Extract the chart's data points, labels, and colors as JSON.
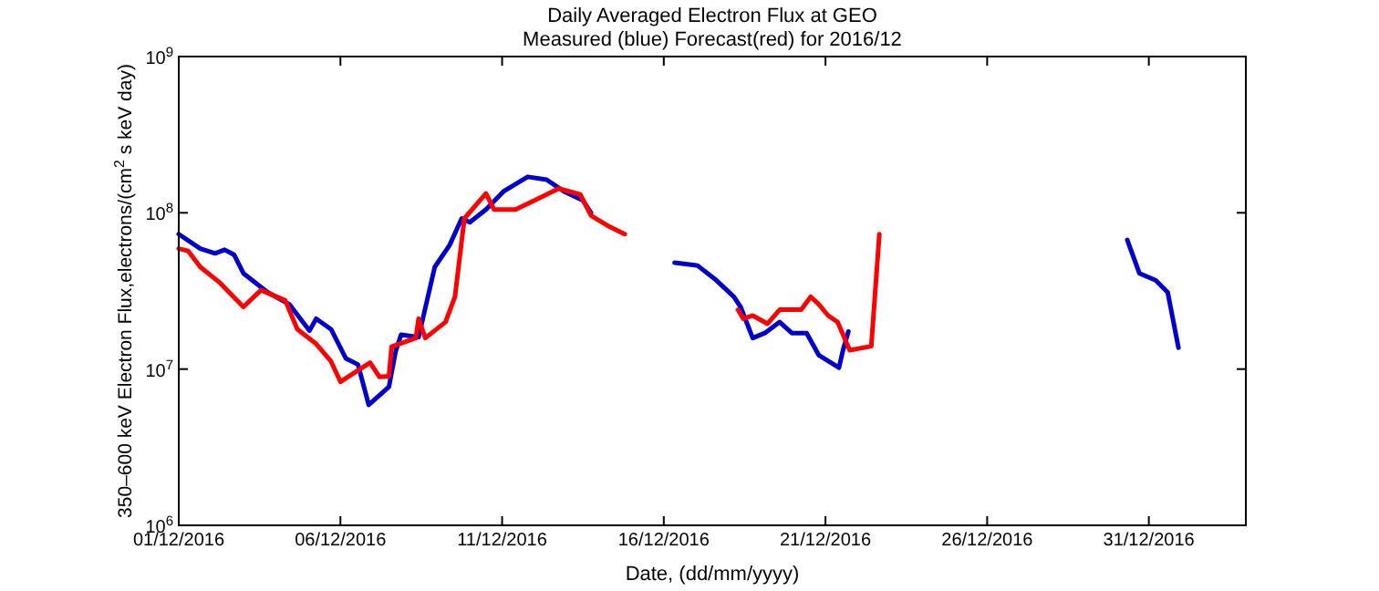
{
  "chart_data": {
    "type": "line",
    "title": "Daily Averaged Electron Flux at GEO",
    "subtitle": "Measured (blue) Forecast(red) for 2016/12",
    "xlabel": "Date, (dd/mm/yyyy)",
    "ylabel": "350–600 keV Electron Flux,electrons/(cm$^{2}$ s keV day)",
    "log": "y",
    "grid": false,
    "xlim": [
      "2016-12-01",
      "2017-01-03"
    ],
    "xticks": [
      {
        "value": "2016-12-01",
        "label": "01/12/2016"
      },
      {
        "value": "2016-12-06",
        "label": "06/12/2016"
      },
      {
        "value": "2016-12-11",
        "label": "11/12/2016"
      },
      {
        "value": "2016-12-16",
        "label": "16/12/2016"
      },
      {
        "value": "2016-12-21",
        "label": "21/12/2016"
      },
      {
        "value": "2016-12-26",
        "label": "26/12/2016"
      },
      {
        "value": "2016-12-31",
        "label": "31/12/2016"
      }
    ],
    "ylim": [
      1000000,
      1000000000
    ],
    "yticks": [
      {
        "value": 1000000,
        "label": "10$^{6}$"
      },
      {
        "value": 10000000,
        "label": "10$^{7}$"
      },
      {
        "value": 100000000,
        "label": "10$^{8}$"
      },
      {
        "value": 1000000000,
        "label": "10$^{9}$"
      }
    ],
    "series": [
      {
        "color": "#0000cc",
        "x": [
          "2016-12-01T00:00",
          "2016-12-01T16:00",
          "2016-12-02T03:00",
          "2016-12-02T10:00",
          "2016-12-02T17:00",
          "2016-12-03T00:00",
          "2016-12-03T18:00",
          "2016-12-04T10:00",
          "2016-12-05T01:00",
          "2016-12-05T06:00",
          "2016-12-05T17:00",
          "2016-12-06T04:00",
          "2016-12-06T13:00",
          "2016-12-06T21:00",
          "2016-12-07T12:00",
          "2016-12-07T17:00",
          "2016-12-07T21:00",
          "2016-12-08T10:00",
          "2016-12-08T22:00",
          "2016-12-09T09:00",
          "2016-12-09T18:00",
          "2016-12-10T00:00",
          "2016-12-10T12:00",
          "2016-12-11T01:00",
          "2016-12-11T19:00",
          "2016-12-12T09:00",
          "2016-12-12T22:00",
          "2016-12-13T12:00",
          "2016-12-13T18:00",
          "2016-12-15T00:00",
          "2016-12-16T08:00",
          "2016-12-17T01:00",
          "2016-12-17T15:00",
          "2016-12-18T04:00",
          "2016-12-18T09:00",
          "2016-12-18T18:00",
          "2016-12-19T03:00",
          "2016-12-19T14:00",
          "2016-12-19T23:00",
          "2016-12-20T10:00",
          "2016-12-20T19:00",
          "2016-12-21T10:00",
          "2016-12-21T13:00",
          "2016-12-21T17:00",
          "2016-12-25T00:00",
          "2016-12-30T08:00",
          "2016-12-30T17:00",
          "2016-12-31T05:00",
          "2016-12-31T14:00",
          "2016-12-31T22:00"
        ],
        "values": [
          73000000,
          59000000,
          55000000,
          58000000,
          54000000,
          41000000,
          31000000,
          26000000,
          17600000,
          21000000,
          18000000,
          11700000,
          10700000,
          5900000,
          7700000,
          13000000,
          16600000,
          16000000,
          45000000,
          62000000,
          92000000,
          87000000,
          105000000,
          137000000,
          170000000,
          163000000,
          137000000,
          120000000,
          100000000,
          null,
          48000000,
          46000000,
          37000000,
          29000000,
          25000000,
          15800000,
          17000000,
          20000000,
          17000000,
          17000000,
          12300000,
          10200000,
          13200000,
          17400000,
          null,
          67000000,
          41000000,
          37000000,
          31000000,
          13700000
        ]
      },
      {
        "color": "#ff0000",
        "x": [
          "2016-12-01T00:00",
          "2016-12-01T07:00",
          "2016-12-01T16:00",
          "2016-12-02T06:00",
          "2016-12-03T00:00",
          "2016-12-03T13:00",
          "2016-12-04T07:00",
          "2016-12-04T16:00",
          "2016-12-05T06:00",
          "2016-12-05T17:00",
          "2016-12-06T00:00",
          "2016-12-06T13:00",
          "2016-12-06T22:00",
          "2016-12-07T05:00",
          "2016-12-07T12:00",
          "2016-12-07T14:00",
          "2016-12-08T08:00",
          "2016-12-08T10:00",
          "2016-12-08T15:00",
          "2016-12-09T06:00",
          "2016-12-09T13:00",
          "2016-12-09T20:00",
          "2016-12-10T12:00",
          "2016-12-10T18:00",
          "2016-12-11T10:00",
          "2016-12-12T00:00",
          "2016-12-12T18:00",
          "2016-12-13T10:00",
          "2016-12-13T18:00",
          "2016-12-14T06:00",
          "2016-12-14T19:00",
          "2016-12-16T00:00",
          "2016-12-18T07:00",
          "2016-12-18T11:00",
          "2016-12-18T18:00",
          "2016-12-19T05:00",
          "2016-12-19T14:00",
          "2016-12-20T06:00",
          "2016-12-20T13:00",
          "2016-12-20T19:00",
          "2016-12-21T02:00",
          "2016-12-21T09:00",
          "2016-12-21T18:00",
          "2016-12-22T10:00",
          "2016-12-22T16:00"
        ],
        "values": [
          59000000,
          57000000,
          45000000,
          36000000,
          25000000,
          32000000,
          27500000,
          18000000,
          14500000,
          11200000,
          8300000,
          9800000,
          11000000,
          8900000,
          9000000,
          13900000,
          15800000,
          21000000,
          15800000,
          20000000,
          29000000,
          92000000,
          133000000,
          105000000,
          105000000,
          120000000,
          143000000,
          131000000,
          96000000,
          83000000,
          73000000,
          null,
          24000000,
          21000000,
          22000000,
          19500000,
          24000000,
          24000000,
          29000000,
          26000000,
          22000000,
          20000000,
          13200000,
          14000000,
          73000000
        ]
      }
    ]
  }
}
